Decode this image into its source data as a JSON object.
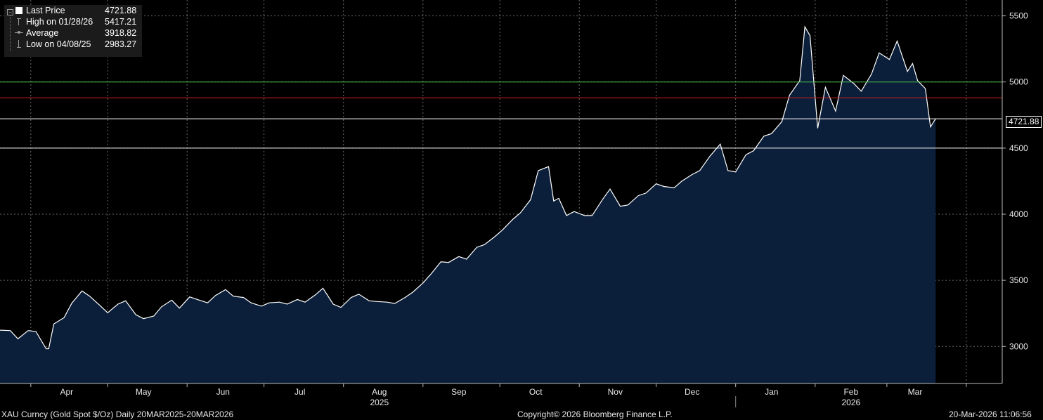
{
  "legend": {
    "last_price_label": "Last Price",
    "last_price_value": "4721.88",
    "high_label": "High on 01/28/26",
    "high_value": "5417.21",
    "average_label": "Average",
    "average_value": "3918.82",
    "low_label": "Low on 04/08/25",
    "low_value": "2983.27"
  },
  "last_price_tag": "4721.88",
  "footer": {
    "security": "XAU Curncy (Gold Spot  $/Oz) Daily 20MAR2025-20MAR2026",
    "copyright": "Copyright© 2026 Bloomberg Finance L.P.",
    "timestamp": "20-Mar-2026 11:06:56"
  },
  "colors": {
    "background": "#000000",
    "area_fill": "#0c1f3a",
    "price_line": "#ffffff",
    "green_line": "#4cc24c",
    "red_line": "#d62020",
    "grid": "#6a6a6a"
  },
  "chart_data": {
    "type": "area",
    "series": [
      {
        "points": [
          [
            "2025-03-20",
            3123
          ],
          [
            "2025-03-24",
            3120
          ],
          [
            "2025-03-27",
            3058
          ],
          [
            "2025-03-31",
            3120
          ],
          [
            "2025-04-03",
            3113
          ],
          [
            "2025-04-07",
            2983
          ],
          [
            "2025-04-08",
            2983
          ],
          [
            "2025-04-10",
            3170
          ],
          [
            "2025-04-14",
            3218
          ],
          [
            "2025-04-17",
            3327
          ],
          [
            "2025-04-21",
            3420
          ],
          [
            "2025-04-24",
            3380
          ],
          [
            "2025-04-28",
            3310
          ],
          [
            "2025-05-01",
            3255
          ],
          [
            "2025-05-05",
            3320
          ],
          [
            "2025-05-08",
            3345
          ],
          [
            "2025-05-12",
            3240
          ],
          [
            "2025-05-15",
            3210
          ],
          [
            "2025-05-19",
            3230
          ],
          [
            "2025-05-22",
            3300
          ],
          [
            "2025-05-26",
            3350
          ],
          [
            "2025-05-29",
            3290
          ],
          [
            "2025-06-02",
            3375
          ],
          [
            "2025-06-05",
            3355
          ],
          [
            "2025-06-09",
            3330
          ],
          [
            "2025-06-12",
            3385
          ],
          [
            "2025-06-16",
            3430
          ],
          [
            "2025-06-19",
            3380
          ],
          [
            "2025-06-23",
            3370
          ],
          [
            "2025-06-26",
            3330
          ],
          [
            "2025-06-30",
            3305
          ],
          [
            "2025-07-03",
            3330
          ],
          [
            "2025-07-07",
            3335
          ],
          [
            "2025-07-10",
            3320
          ],
          [
            "2025-07-14",
            3355
          ],
          [
            "2025-07-17",
            3335
          ],
          [
            "2025-07-21",
            3390
          ],
          [
            "2025-07-24",
            3440
          ],
          [
            "2025-07-28",
            3320
          ],
          [
            "2025-07-31",
            3295
          ],
          [
            "2025-08-04",
            3370
          ],
          [
            "2025-08-07",
            3395
          ],
          [
            "2025-08-11",
            3345
          ],
          [
            "2025-08-14",
            3340
          ],
          [
            "2025-08-18",
            3335
          ],
          [
            "2025-08-21",
            3325
          ],
          [
            "2025-08-25",
            3370
          ],
          [
            "2025-08-28",
            3410
          ],
          [
            "2025-09-01",
            3480
          ],
          [
            "2025-09-04",
            3545
          ],
          [
            "2025-09-08",
            3640
          ],
          [
            "2025-09-11",
            3635
          ],
          [
            "2025-09-15",
            3680
          ],
          [
            "2025-09-18",
            3660
          ],
          [
            "2025-09-22",
            3750
          ],
          [
            "2025-09-25",
            3770
          ],
          [
            "2025-09-29",
            3830
          ],
          [
            "2025-10-02",
            3880
          ],
          [
            "2025-10-06",
            3960
          ],
          [
            "2025-10-09",
            4010
          ],
          [
            "2025-10-13",
            4110
          ],
          [
            "2025-10-16",
            4330
          ],
          [
            "2025-10-20",
            4360
          ],
          [
            "2025-10-22",
            4100
          ],
          [
            "2025-10-24",
            4120
          ],
          [
            "2025-10-27",
            3990
          ],
          [
            "2025-10-30",
            4020
          ],
          [
            "2025-11-03",
            3990
          ],
          [
            "2025-11-06",
            3990
          ],
          [
            "2025-11-10",
            4110
          ],
          [
            "2025-11-13",
            4190
          ],
          [
            "2025-11-17",
            4060
          ],
          [
            "2025-11-20",
            4070
          ],
          [
            "2025-11-24",
            4140
          ],
          [
            "2025-11-27",
            4160
          ],
          [
            "2025-12-01",
            4230
          ],
          [
            "2025-12-04",
            4210
          ],
          [
            "2025-12-08",
            4200
          ],
          [
            "2025-12-11",
            4250
          ],
          [
            "2025-12-15",
            4300
          ],
          [
            "2025-12-18",
            4330
          ],
          [
            "2025-12-22",
            4440
          ],
          [
            "2025-12-26",
            4530
          ],
          [
            "2025-12-29",
            4330
          ],
          [
            "2026-01-01",
            4320
          ],
          [
            "2026-01-05",
            4450
          ],
          [
            "2026-01-08",
            4480
          ],
          [
            "2026-01-12",
            4590
          ],
          [
            "2026-01-15",
            4610
          ],
          [
            "2026-01-19",
            4700
          ],
          [
            "2026-01-22",
            4900
          ],
          [
            "2026-01-26",
            5010
          ],
          [
            "2026-01-28",
            5417
          ],
          [
            "2026-01-30",
            5350
          ],
          [
            "2026-02-02",
            4650
          ],
          [
            "2026-02-05",
            4960
          ],
          [
            "2026-02-09",
            4780
          ],
          [
            "2026-02-12",
            5050
          ],
          [
            "2026-02-16",
            4990
          ],
          [
            "2026-02-19",
            4930
          ],
          [
            "2026-02-23",
            5060
          ],
          [
            "2026-02-26",
            5220
          ],
          [
            "2026-03-02",
            5170
          ],
          [
            "2026-03-05",
            5310
          ],
          [
            "2026-03-09",
            5080
          ],
          [
            "2026-03-11",
            5140
          ],
          [
            "2026-03-13",
            5010
          ],
          [
            "2026-03-16",
            4950
          ],
          [
            "2026-03-18",
            4660
          ],
          [
            "2026-03-20",
            4722
          ]
        ]
      }
    ],
    "xlabel": "",
    "ylabel": "",
    "ylim": [
      2720,
      5620
    ],
    "y_ticks": [
      "3000",
      "3500",
      "4000",
      "4500",
      "5000",
      "5500"
    ],
    "x_month_labels": [
      "Apr",
      "May",
      "Jun",
      "Jul",
      "Aug",
      "Sep",
      "Oct",
      "Nov",
      "Dec",
      "Jan",
      "Feb",
      "Mar"
    ],
    "x_month_dates": [
      "2025-04-15",
      "2025-05-15",
      "2025-06-15",
      "2025-07-15",
      "2025-08-15",
      "2025-09-15",
      "2025-10-15",
      "2025-11-15",
      "2025-12-15",
      "2026-01-15",
      "2026-02-15",
      "2026-03-12"
    ],
    "x_year_labels": [
      "2025",
      "2026"
    ],
    "horizontal_lines": [
      {
        "value": 5000,
        "color": "#4cc24c"
      },
      {
        "value": 4880,
        "color": "#d62020"
      },
      {
        "value": 4721.88,
        "color": "#ffffff"
      },
      {
        "value": 4500,
        "color": "#ffffff"
      }
    ],
    "grid": true,
    "legend_position": "top-left"
  }
}
